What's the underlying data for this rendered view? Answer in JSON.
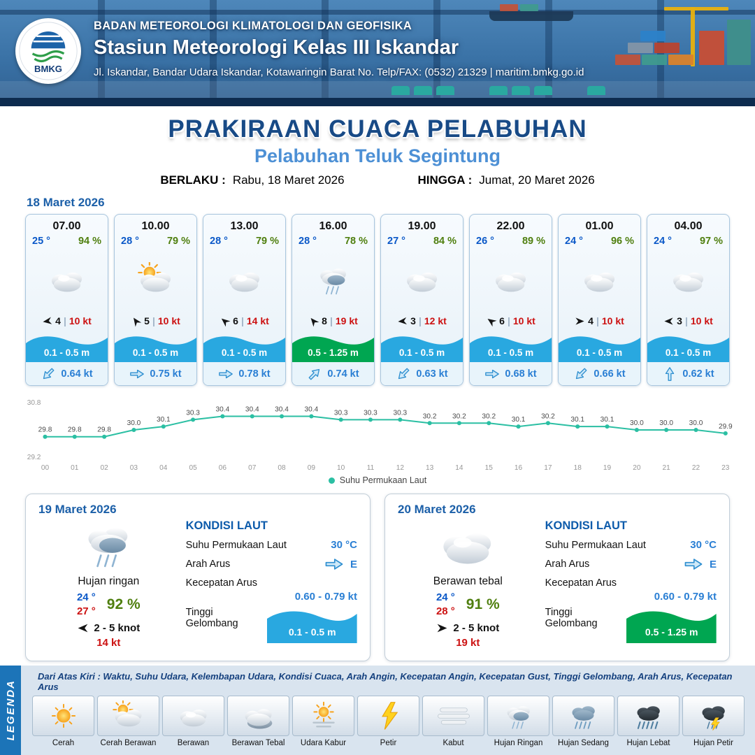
{
  "header": {
    "org": "BADAN METEOROLOGI KLIMATOLOGI DAN GEOFISIKA",
    "station": "Stasiun Meteorologi Kelas III Iskandar",
    "address": "Jl. Iskandar, Bandar Udara Iskandar, Kotawaringin Barat No. Telp/FAX: (0532) 21329 | maritim.bmkg.go.id",
    "logo_label": "BMKG"
  },
  "title": {
    "main": "PRAKIRAAN CUACA PELABUHAN",
    "sub": "Pelabuhan Teluk Segintung",
    "valid_from_label": "BERLAKU :",
    "valid_from": "Rabu, 18 Maret 2026",
    "valid_to_label": "HINGGA :",
    "valid_to": "Jumat, 20 Maret 2026"
  },
  "forecast_date": "18 Maret 2026",
  "ui": {
    "wind_arrow": "wind-arrow",
    "current_arrow": "current-arrow",
    "separator": "|"
  },
  "colors": {
    "accent_blue": "#1b5fa8",
    "temp_blue": "#0a58c8",
    "humidity_green": "#4f7f0f",
    "gust_red": "#cc1111",
    "wave_blue": "#29a8e0",
    "wave_green": "#00a651",
    "chart_line": "#2bbfa3"
  },
  "cards": [
    {
      "time": "07.00",
      "temp": "25 °",
      "humidity": "94 %",
      "icon": "berawan",
      "wind": "4",
      "wind_rot": -8,
      "gust": "10 kt",
      "wave": "0.1 - 0.5 m",
      "wave_class": "wave-blue",
      "current": "0.64 kt",
      "cur_rot": 135
    },
    {
      "time": "10.00",
      "temp": "28 °",
      "humidity": "79 %",
      "icon": "cerah-berawan",
      "wind": "5",
      "wind_rot": 55,
      "gust": "10 kt",
      "wave": "0.1 - 0.5 m",
      "wave_class": "wave-blue",
      "current": "0.75 kt",
      "cur_rot": 0
    },
    {
      "time": "13.00",
      "temp": "28 °",
      "humidity": "79 %",
      "icon": "berawan",
      "wind": "6",
      "wind_rot": 40,
      "gust": "14 kt",
      "wave": "0.1 - 0.5 m",
      "wave_class": "wave-blue",
      "current": "0.78 kt",
      "cur_rot": 0
    },
    {
      "time": "16.00",
      "temp": "28 °",
      "humidity": "78 %",
      "icon": "hujan-ringan",
      "wind": "8",
      "wind_rot": 50,
      "gust": "19 kt",
      "wave": "0.5 - 1.25 m",
      "wave_class": "wave-green",
      "current": "0.74 kt",
      "cur_rot": -45
    },
    {
      "time": "19.00",
      "temp": "27 °",
      "humidity": "84 %",
      "icon": "berawan",
      "wind": "3",
      "wind_rot": -5,
      "gust": "12 kt",
      "wave": "0.1 - 0.5 m",
      "wave_class": "wave-blue",
      "current": "0.63 kt",
      "cur_rot": 135
    },
    {
      "time": "22.00",
      "temp": "26 °",
      "humidity": "89 %",
      "icon": "berawan",
      "wind": "6",
      "wind_rot": 35,
      "gust": "10 kt",
      "wave": "0.1 - 0.5 m",
      "wave_class": "wave-blue",
      "current": "0.68 kt",
      "cur_rot": 0
    },
    {
      "time": "01.00",
      "temp": "24 °",
      "humidity": "96 %",
      "icon": "berawan",
      "wind": "4",
      "wind_rot": 180,
      "gust": "10 kt",
      "wave": "0.1 - 0.5 m",
      "wave_class": "wave-blue",
      "current": "0.66 kt",
      "cur_rot": 135
    },
    {
      "time": "04.00",
      "temp": "24 °",
      "humidity": "97 %",
      "icon": "berawan",
      "wind": "3",
      "wind_rot": 0,
      "gust": "10 kt",
      "wave": "0.1 - 0.5 m",
      "wave_class": "wave-blue",
      "current": "0.62 kt",
      "cur_rot": -90
    }
  ],
  "chart_data": {
    "type": "line",
    "title": "",
    "legend_label": "Suhu Permukaan Laut",
    "x": [
      "00",
      "01",
      "02",
      "03",
      "04",
      "05",
      "06",
      "07",
      "08",
      "09",
      "10",
      "11",
      "12",
      "13",
      "14",
      "15",
      "16",
      "17",
      "18",
      "19",
      "20",
      "21",
      "22",
      "23"
    ],
    "series": [
      {
        "name": "Suhu Permukaan Laut",
        "values": [
          29.8,
          29.8,
          29.8,
          30.0,
          30.1,
          30.3,
          30.4,
          30.4,
          30.4,
          30.4,
          30.3,
          30.3,
          30.3,
          30.2,
          30.2,
          30.2,
          30.1,
          30.2,
          30.1,
          30.1,
          30.0,
          30.0,
          30.0,
          29.9
        ]
      }
    ],
    "ylim": [
      29.2,
      30.8
    ],
    "line_color": "#2bbfa3",
    "grid": false,
    "legend_position": "bottom"
  },
  "days": [
    {
      "date": "19 Maret 2026",
      "icon": "hujan-ringan",
      "condition": "Hujan ringan",
      "temp_min": "24 °",
      "temp_max": "27 °",
      "humidity": "92 %",
      "wind_rot": 0,
      "wind_range": "2 - 5 knot",
      "gust": "14 kt",
      "sea": {
        "title": "KONDISI LAUT",
        "sst_label": "Suhu Permukaan Laut",
        "sst": "30 °C",
        "dir_label": "Arah Arus",
        "dir": "E",
        "dir_rot": 0,
        "speed_label": "Kecepatan Arus",
        "speed": "0.60 - 0.79 kt",
        "wave_label": "Tinggi Gelombang",
        "wave": "0.1 - 0.5 m",
        "wave_class": "wave-blue"
      }
    },
    {
      "date": "20 Maret 2026",
      "icon": "berawan",
      "condition": "Berawan tebal",
      "temp_min": "24 °",
      "temp_max": "28 °",
      "humidity": "91 %",
      "wind_rot": 180,
      "wind_range": "2 - 5 knot",
      "gust": "19 kt",
      "sea": {
        "title": "KONDISI LAUT",
        "sst_label": "Suhu Permukaan Laut",
        "sst": "30 °C",
        "dir_label": "Arah Arus",
        "dir": "E",
        "dir_rot": 0,
        "speed_label": "Kecepatan Arus",
        "speed": "0.60 - 0.79 kt",
        "wave_label": "Tinggi Gelombang",
        "wave": "0.5 - 1.25 m",
        "wave_class": "wave-green"
      }
    }
  ],
  "legend": {
    "band": "LEGENDA",
    "description": "Dari Atas Kiri : Waktu, Suhu Udara, Kelembapan Udara, Kondisi Cuaca, Arah Angin, Kecepatan Angin, Kecepatan Gust, Tinggi Gelombang, Arah Arus, Kecepatan Arus",
    "items": [
      {
        "label": "Cerah",
        "icon": "cerah"
      },
      {
        "label": "Cerah Berawan",
        "icon": "cerah-berawan"
      },
      {
        "label": "Berawan",
        "icon": "berawan"
      },
      {
        "label": "Berawan Tebal",
        "icon": "berawan-tebal"
      },
      {
        "label": "Udara Kabur",
        "icon": "udara-kabur"
      },
      {
        "label": "Petir",
        "icon": "petir"
      },
      {
        "label": "Kabut",
        "icon": "kabut"
      },
      {
        "label": "Hujan Ringan",
        "icon": "hujan-ringan"
      },
      {
        "label": "Hujan Sedang",
        "icon": "hujan-sedang"
      },
      {
        "label": "Hujan Lebat",
        "icon": "hujan-lebat"
      },
      {
        "label": "Hujan Petir",
        "icon": "hujan-petir"
      }
    ]
  }
}
